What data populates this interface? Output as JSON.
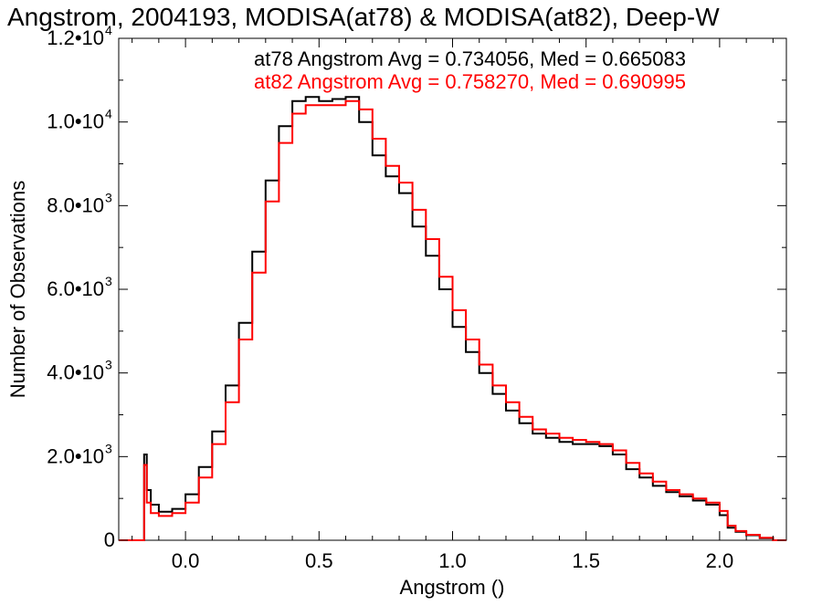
{
  "colors": {
    "series1": "#000000",
    "series2": "#ff0000",
    "axis": "#000000",
    "background": "#ffffff"
  },
  "chart_data": {
    "type": "line",
    "step": true,
    "title": "Angstrom, 2004193, MODISA(at78) & MODISA(at82), Deep-W",
    "xlabel": "Angstrom ()",
    "ylabel": "Number of Observations",
    "xlim": [
      -0.25,
      2.25
    ],
    "ylim": [
      0,
      12000
    ],
    "grid": false,
    "x_ticks": [
      {
        "value": 0.0,
        "label": "0.0"
      },
      {
        "value": 0.5,
        "label": "0.5"
      },
      {
        "value": 1.0,
        "label": "1.0"
      },
      {
        "value": 1.5,
        "label": "1.5"
      },
      {
        "value": 2.0,
        "label": "2.0"
      }
    ],
    "y_ticks": [
      {
        "value": 0,
        "mantissa": "0",
        "exp": ""
      },
      {
        "value": 2000,
        "mantissa": "2.0•10",
        "exp": "3"
      },
      {
        "value": 4000,
        "mantissa": "4.0•10",
        "exp": "3"
      },
      {
        "value": 6000,
        "mantissa": "6.0•10",
        "exp": "3"
      },
      {
        "value": 8000,
        "mantissa": "8.0•10",
        "exp": "3"
      },
      {
        "value": 10000,
        "mantissa": "1.0•10",
        "exp": "4"
      },
      {
        "value": 12000,
        "mantissa": "1.2•10",
        "exp": "4"
      }
    ],
    "annotations": [
      {
        "text": "at78 Angstrom Avg = 0.734056, Med = 0.665083",
        "color": "#000000"
      },
      {
        "text": "at82 Angstrom Avg = 0.758270, Med = 0.690995",
        "color": "#ff0000"
      }
    ],
    "series": [
      {
        "color": "#000000",
        "points": [
          [
            -0.25,
            0
          ],
          [
            -0.16,
            0
          ],
          [
            -0.155,
            2050
          ],
          [
            -0.145,
            1200
          ],
          [
            -0.13,
            850
          ],
          [
            -0.1,
            680
          ],
          [
            -0.05,
            750
          ],
          [
            0.0,
            1100
          ],
          [
            0.05,
            1750
          ],
          [
            0.1,
            2600
          ],
          [
            0.15,
            3700
          ],
          [
            0.2,
            5200
          ],
          [
            0.25,
            6900
          ],
          [
            0.3,
            8600
          ],
          [
            0.35,
            9900
          ],
          [
            0.4,
            10500
          ],
          [
            0.45,
            10600
          ],
          [
            0.5,
            10500
          ],
          [
            0.55,
            10550
          ],
          [
            0.6,
            10600
          ],
          [
            0.65,
            10000
          ],
          [
            0.7,
            9200
          ],
          [
            0.75,
            8700
          ],
          [
            0.8,
            8300
          ],
          [
            0.85,
            7500
          ],
          [
            0.9,
            6800
          ],
          [
            0.95,
            6000
          ],
          [
            1.0,
            5100
          ],
          [
            1.05,
            4500
          ],
          [
            1.1,
            4000
          ],
          [
            1.15,
            3500
          ],
          [
            1.2,
            3100
          ],
          [
            1.25,
            2800
          ],
          [
            1.3,
            2550
          ],
          [
            1.35,
            2450
          ],
          [
            1.4,
            2350
          ],
          [
            1.45,
            2300
          ],
          [
            1.5,
            2300
          ],
          [
            1.55,
            2250
          ],
          [
            1.6,
            2050
          ],
          [
            1.65,
            1700
          ],
          [
            1.7,
            1500
          ],
          [
            1.75,
            1300
          ],
          [
            1.8,
            1150
          ],
          [
            1.85,
            1050
          ],
          [
            1.9,
            950
          ],
          [
            1.95,
            850
          ],
          [
            2.0,
            600
          ],
          [
            2.03,
            300
          ],
          [
            2.06,
            200
          ],
          [
            2.1,
            120
          ],
          [
            2.15,
            50
          ],
          [
            2.2,
            0
          ],
          [
            2.25,
            0
          ]
        ]
      },
      {
        "color": "#ff0000",
        "points": [
          [
            -0.25,
            0
          ],
          [
            -0.16,
            0
          ],
          [
            -0.155,
            1800
          ],
          [
            -0.145,
            900
          ],
          [
            -0.13,
            650
          ],
          [
            -0.1,
            580
          ],
          [
            -0.05,
            650
          ],
          [
            0.0,
            900
          ],
          [
            0.05,
            1500
          ],
          [
            0.1,
            2300
          ],
          [
            0.15,
            3300
          ],
          [
            0.2,
            4800
          ],
          [
            0.25,
            6400
          ],
          [
            0.3,
            8100
          ],
          [
            0.35,
            9500
          ],
          [
            0.4,
            10200
          ],
          [
            0.45,
            10400
          ],
          [
            0.5,
            10400
          ],
          [
            0.55,
            10400
          ],
          [
            0.6,
            10500
          ],
          [
            0.65,
            10300
          ],
          [
            0.7,
            9600
          ],
          [
            0.75,
            8950
          ],
          [
            0.8,
            8550
          ],
          [
            0.85,
            7900
          ],
          [
            0.9,
            7200
          ],
          [
            0.95,
            6300
          ],
          [
            1.0,
            5500
          ],
          [
            1.05,
            4800
          ],
          [
            1.1,
            4200
          ],
          [
            1.15,
            3700
          ],
          [
            1.2,
            3300
          ],
          [
            1.25,
            2950
          ],
          [
            1.3,
            2650
          ],
          [
            1.35,
            2550
          ],
          [
            1.4,
            2450
          ],
          [
            1.45,
            2400
          ],
          [
            1.5,
            2350
          ],
          [
            1.55,
            2300
          ],
          [
            1.6,
            2150
          ],
          [
            1.65,
            1850
          ],
          [
            1.7,
            1600
          ],
          [
            1.75,
            1400
          ],
          [
            1.8,
            1200
          ],
          [
            1.85,
            1100
          ],
          [
            1.9,
            1000
          ],
          [
            1.95,
            900
          ],
          [
            2.0,
            700
          ],
          [
            2.03,
            350
          ],
          [
            2.06,
            220
          ],
          [
            2.1,
            130
          ],
          [
            2.15,
            60
          ],
          [
            2.2,
            0
          ],
          [
            2.25,
            0
          ]
        ]
      }
    ]
  }
}
